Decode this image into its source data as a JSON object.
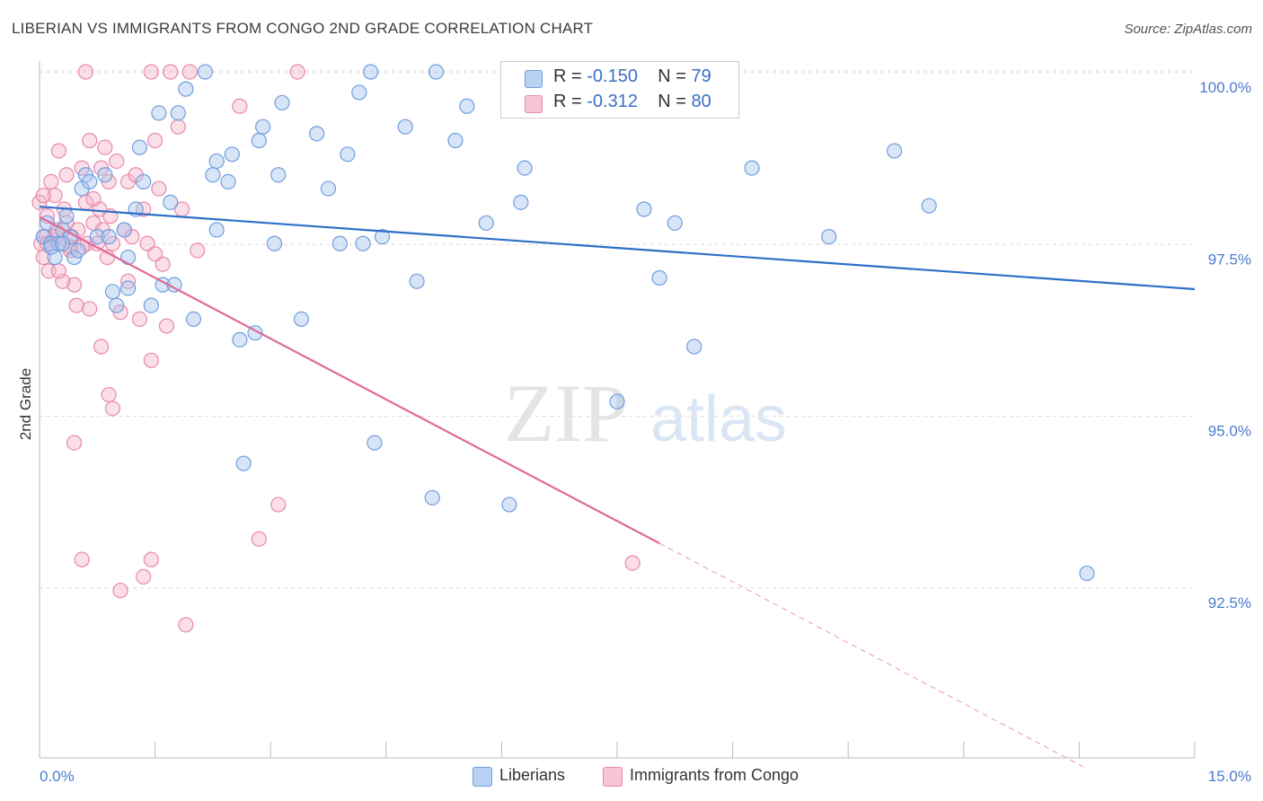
{
  "title": "LIBERIAN VS IMMIGRANTS FROM CONGO 2ND GRADE CORRELATION CHART",
  "source": "Source: ZipAtlas.com",
  "watermark": {
    "zip": "ZIP",
    "atlas": "atlas"
  },
  "legend": {
    "rows": [
      {
        "r_label": "R =",
        "r_value": "-0.150",
        "n_label": "N =",
        "n_value": "79"
      },
      {
        "r_label": "R =",
        "r_value": "-0.312",
        "n_label": "N =",
        "n_value": "80"
      }
    ]
  },
  "bottom_legend": {
    "series1": "Liberians",
    "series2": "Immigrants from Congo"
  },
  "colors": {
    "blue_fill": "#a9c6ee",
    "blue_stroke": "#6f9ede",
    "blue_line": "#2f6fc8",
    "pink_fill": "#f4b6cb",
    "pink_stroke": "#e889a9",
    "pink_line": "#e06a96",
    "grid": "#dcdcdc",
    "tick_text": "#4a7bd0"
  },
  "chart_data": {
    "type": "scatter",
    "title": "LIBERIAN VS IMMIGRANTS FROM CONGO 2ND GRADE CORRELATION CHART",
    "xlabel": "",
    "ylabel": "2nd Grade",
    "xlim": [
      0,
      15
    ],
    "ylim": [
      89.8,
      100.4
    ],
    "x_ticks": [
      "0.0%",
      "15.0%"
    ],
    "y_ticks": [
      {
        "value": 100.0,
        "label": "100.0%"
      },
      {
        "value": 97.5,
        "label": "97.5%"
      },
      {
        "value": 95.0,
        "label": "95.0%"
      },
      {
        "value": 92.5,
        "label": "92.5%"
      }
    ],
    "grid": true,
    "legend_position": "top-center",
    "series": [
      {
        "name": "Liberians",
        "r": -0.15,
        "n": 79,
        "trend": {
          "x": [
            0.0,
            15.0
          ],
          "y": [
            98.05,
            96.85
          ]
        },
        "points": [
          [
            0.05,
            97.6
          ],
          [
            0.1,
            97.8
          ],
          [
            0.15,
            97.5
          ],
          [
            0.2,
            97.3
          ],
          [
            0.25,
            97.5
          ],
          [
            0.3,
            97.7
          ],
          [
            0.35,
            97.9
          ],
          [
            0.4,
            97.6
          ],
          [
            0.45,
            97.3
          ],
          [
            0.55,
            98.3
          ],
          [
            0.6,
            98.5
          ],
          [
            0.65,
            98.4
          ],
          [
            0.75,
            97.6
          ],
          [
            0.85,
            98.5
          ],
          [
            0.9,
            97.6
          ],
          [
            0.95,
            96.8
          ],
          [
            1.0,
            96.6
          ],
          [
            1.1,
            97.7
          ],
          [
            1.15,
            97.3
          ],
          [
            1.25,
            98.0
          ],
          [
            1.3,
            98.9
          ],
          [
            1.35,
            98.4
          ],
          [
            1.45,
            96.6
          ],
          [
            1.55,
            99.4
          ],
          [
            1.6,
            96.9
          ],
          [
            1.7,
            98.1
          ],
          [
            1.8,
            99.4
          ],
          [
            1.9,
            99.75
          ],
          [
            2.0,
            96.4
          ],
          [
            2.15,
            100.0
          ],
          [
            2.25,
            98.5
          ],
          [
            2.3,
            97.7
          ],
          [
            2.3,
            98.7
          ],
          [
            2.45,
            98.4
          ],
          [
            2.5,
            98.8
          ],
          [
            2.6,
            96.1
          ],
          [
            2.65,
            94.3
          ],
          [
            2.8,
            96.2
          ],
          [
            2.85,
            99.0
          ],
          [
            2.9,
            99.2
          ],
          [
            3.05,
            97.5
          ],
          [
            3.1,
            98.5
          ],
          [
            3.15,
            99.55
          ],
          [
            3.4,
            96.4
          ],
          [
            3.6,
            99.1
          ],
          [
            3.75,
            98.3
          ],
          [
            3.9,
            97.5
          ],
          [
            4.0,
            98.8
          ],
          [
            4.15,
            99.7
          ],
          [
            4.2,
            97.5
          ],
          [
            4.3,
            100.0
          ],
          [
            4.35,
            94.6
          ],
          [
            4.45,
            97.6
          ],
          [
            4.75,
            99.2
          ],
          [
            4.9,
            96.95
          ],
          [
            5.1,
            93.8
          ],
          [
            5.15,
            100.0
          ],
          [
            5.4,
            99.0
          ],
          [
            5.55,
            99.5
          ],
          [
            5.8,
            97.8
          ],
          [
            6.1,
            93.7
          ],
          [
            6.25,
            98.1
          ],
          [
            6.3,
            98.6
          ],
          [
            7.15,
            100.0
          ],
          [
            7.5,
            95.2
          ],
          [
            7.85,
            98.0
          ],
          [
            8.05,
            97.0
          ],
          [
            8.25,
            97.8
          ],
          [
            8.5,
            96.0
          ],
          [
            9.25,
            98.6
          ],
          [
            10.25,
            97.6
          ],
          [
            11.1,
            98.85
          ],
          [
            11.55,
            98.05
          ],
          [
            13.6,
            92.7
          ],
          [
            0.15,
            97.45
          ],
          [
            0.3,
            97.5
          ],
          [
            0.5,
            97.4
          ],
          [
            1.15,
            96.85
          ],
          [
            1.75,
            96.9
          ]
        ]
      },
      {
        "name": "Immigrants from Congo",
        "r": -0.312,
        "n": 80,
        "trend": {
          "x": [
            0.0,
            8.05
          ],
          "y": [
            97.9,
            93.15
          ]
        },
        "trend_dashed": {
          "x": [
            8.05,
            13.55
          ],
          "y": [
            93.15,
            89.9
          ]
        },
        "points": [
          [
            0.0,
            98.1
          ],
          [
            0.02,
            97.5
          ],
          [
            0.05,
            97.3
          ],
          [
            0.08,
            97.6
          ],
          [
            0.1,
            97.9
          ],
          [
            0.12,
            97.1
          ],
          [
            0.15,
            98.4
          ],
          [
            0.18,
            97.55
          ],
          [
            0.2,
            98.2
          ],
          [
            0.22,
            97.7
          ],
          [
            0.25,
            98.85
          ],
          [
            0.3,
            97.5
          ],
          [
            0.32,
            98.0
          ],
          [
            0.35,
            97.8
          ],
          [
            0.4,
            97.4
          ],
          [
            0.42,
            97.6
          ],
          [
            0.45,
            96.9
          ],
          [
            0.48,
            96.6
          ],
          [
            0.5,
            97.7
          ],
          [
            0.55,
            98.6
          ],
          [
            0.6,
            98.1
          ],
          [
            0.62,
            97.5
          ],
          [
            0.65,
            99.0
          ],
          [
            0.7,
            97.8
          ],
          [
            0.75,
            97.5
          ],
          [
            0.78,
            98.0
          ],
          [
            0.8,
            98.6
          ],
          [
            0.82,
            97.7
          ],
          [
            0.85,
            98.9
          ],
          [
            0.88,
            97.3
          ],
          [
            0.9,
            98.4
          ],
          [
            0.92,
            97.9
          ],
          [
            0.95,
            97.5
          ],
          [
            1.0,
            98.7
          ],
          [
            1.05,
            96.5
          ],
          [
            1.1,
            97.7
          ],
          [
            1.15,
            98.4
          ],
          [
            1.2,
            97.6
          ],
          [
            1.25,
            98.5
          ],
          [
            1.3,
            96.4
          ],
          [
            1.35,
            98.0
          ],
          [
            1.4,
            97.5
          ],
          [
            1.45,
            95.8
          ],
          [
            1.5,
            99.0
          ],
          [
            1.55,
            98.3
          ],
          [
            1.6,
            97.2
          ],
          [
            1.65,
            96.3
          ],
          [
            1.7,
            100.0
          ],
          [
            1.8,
            99.2
          ],
          [
            1.85,
            98.0
          ],
          [
            1.95,
            100.0
          ],
          [
            2.05,
            97.4
          ],
          [
            0.6,
            100.0
          ],
          [
            1.45,
            100.0
          ],
          [
            2.6,
            99.5
          ],
          [
            3.35,
            100.0
          ],
          [
            0.8,
            96.0
          ],
          [
            0.9,
            95.3
          ],
          [
            0.95,
            95.1
          ],
          [
            0.45,
            94.6
          ],
          [
            3.1,
            93.7
          ],
          [
            2.85,
            93.2
          ],
          [
            0.55,
            92.9
          ],
          [
            1.45,
            92.9
          ],
          [
            1.35,
            92.65
          ],
          [
            1.05,
            92.45
          ],
          [
            1.9,
            91.95
          ],
          [
            7.7,
            92.85
          ],
          [
            0.3,
            96.95
          ],
          [
            0.55,
            97.45
          ],
          [
            0.2,
            97.6
          ],
          [
            0.1,
            97.5
          ],
          [
            0.7,
            98.15
          ],
          [
            1.15,
            96.95
          ],
          [
            0.05,
            98.2
          ],
          [
            0.35,
            98.5
          ],
          [
            1.5,
            97.35
          ],
          [
            0.65,
            96.55
          ],
          [
            0.4,
            97.45
          ],
          [
            0.25,
            97.1
          ]
        ]
      }
    ]
  }
}
